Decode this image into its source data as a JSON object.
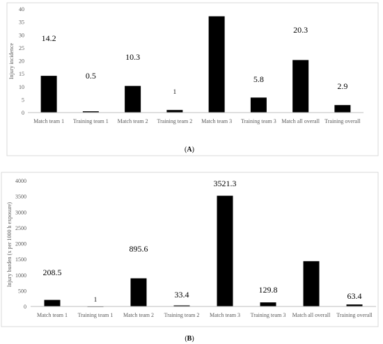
{
  "chart_data": [
    {
      "type": "bar",
      "panel_label": "A",
      "title": "",
      "xlabel": "",
      "ylabel": "Injury incidence",
      "ylim": [
        0,
        40
      ],
      "yticks": [
        0,
        5,
        10,
        15,
        20,
        25,
        30,
        35,
        40
      ],
      "categories": [
        "Match team 1",
        "Training team 1",
        "Match team 2",
        "Training team 2",
        "Match team 3",
        "Training team 3",
        "Match all overall",
        "Training overall"
      ],
      "values": [
        14.2,
        0.5,
        10.3,
        1,
        37.2,
        5.8,
        20.3,
        2.9
      ],
      "data_labels": [
        "14.2",
        "0.5",
        "10.3",
        "1",
        "37.2",
        "5.8",
        "20.3",
        "2.9"
      ],
      "grid": false,
      "bar_color": "#000000"
    },
    {
      "type": "bar",
      "panel_label": "B",
      "title": "",
      "xlabel": "",
      "ylabel": "Injury burden (x per 1000 h exposure)",
      "ylim": [
        0,
        4000
      ],
      "yticks": [
        0,
        500,
        1000,
        1500,
        2000,
        2500,
        3000,
        3500,
        4000
      ],
      "categories": [
        "Match team 1",
        "Training team 1",
        "Match team 2",
        "Training team 2",
        "Match team 3",
        "Training team 3",
        "Match all overall",
        "Training overall"
      ],
      "values": [
        208.5,
        1,
        895.6,
        33.4,
        3521.3,
        129.8,
        1440,
        63.4
      ],
      "data_labels": [
        "208.5",
        "1",
        "895.6",
        "33.4",
        "3521.3",
        "129.8",
        "1440",
        "63.4"
      ],
      "grid": false,
      "bar_color": "#000000"
    }
  ]
}
